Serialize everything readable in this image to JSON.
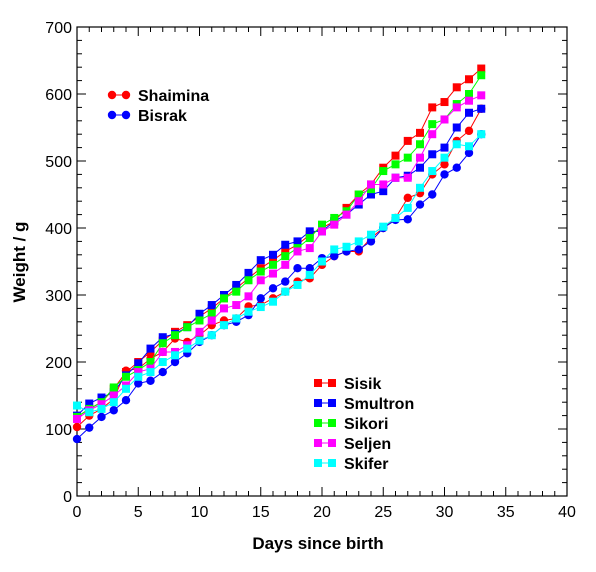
{
  "chart_data": {
    "type": "line",
    "xlabel": "Days since birth",
    "ylabel": "Weight / g",
    "xlim": [
      0,
      40
    ],
    "ylim": [
      0,
      700
    ],
    "xticks": [
      0,
      5,
      10,
      15,
      20,
      25,
      30,
      35,
      40
    ],
    "yticks": [
      0,
      100,
      200,
      300,
      400,
      500,
      600,
      700
    ],
    "grid": false,
    "series": [
      {
        "name": "Shaimina",
        "marker": "circle",
        "color": "#ff0000",
        "x": [
          0,
          1,
          2,
          3,
          4,
          5,
          6,
          7,
          8,
          9,
          10,
          11,
          12,
          13,
          14,
          15,
          16,
          17,
          18,
          19,
          20,
          21,
          22,
          23,
          24,
          25,
          26,
          27,
          28,
          29,
          30,
          31,
          32,
          33
        ],
        "y": [
          103,
          120,
          130,
          145,
          187,
          190,
          205,
          215,
          235,
          230,
          240,
          255,
          262,
          265,
          283,
          285,
          295,
          305,
          320,
          325,
          345,
          358,
          365,
          365,
          385,
          400,
          415,
          445,
          452,
          480,
          495,
          530,
          545,
          578
        ]
      },
      {
        "name": "Bisrak",
        "marker": "circle",
        "color": "#0000ff",
        "x": [
          0,
          1,
          2,
          3,
          4,
          5,
          6,
          7,
          8,
          9,
          10,
          11,
          12,
          13,
          14,
          15,
          16,
          17,
          18,
          19,
          20,
          21,
          22,
          23,
          24,
          25,
          26,
          27,
          28,
          29,
          30,
          31,
          32,
          33
        ],
        "y": [
          85,
          102,
          118,
          128,
          143,
          168,
          172,
          185,
          200,
          213,
          230,
          240,
          255,
          260,
          270,
          295,
          310,
          320,
          340,
          340,
          355,
          358,
          365,
          368,
          380,
          400,
          412,
          413,
          435,
          450,
          480,
          490,
          512,
          540
        ]
      },
      {
        "name": "Sisik",
        "marker": "square",
        "color": "#ff0000",
        "x": [
          0,
          1,
          2,
          3,
          4,
          5,
          6,
          7,
          8,
          9,
          10,
          11,
          12,
          13,
          14,
          15,
          16,
          17,
          18,
          19,
          20,
          21,
          22,
          23,
          24,
          25,
          26,
          27,
          28,
          29,
          30,
          31,
          32,
          33
        ],
        "y": [
          118,
          130,
          140,
          160,
          185,
          200,
          215,
          232,
          245,
          255,
          268,
          280,
          295,
          310,
          325,
          340,
          352,
          365,
          375,
          390,
          400,
          410,
          430,
          450,
          465,
          490,
          508,
          530,
          542,
          580,
          588,
          610,
          622,
          638
        ]
      },
      {
        "name": "Smultron",
        "marker": "square",
        "color": "#0000ff",
        "x": [
          0,
          1,
          2,
          3,
          4,
          5,
          6,
          7,
          8,
          9,
          10,
          11,
          12,
          13,
          14,
          15,
          16,
          17,
          18,
          19,
          20,
          21,
          22,
          23,
          24,
          25,
          26,
          27,
          28,
          29,
          30,
          31,
          32,
          33
        ],
        "y": [
          120,
          138,
          147,
          155,
          180,
          198,
          220,
          237,
          242,
          252,
          272,
          285,
          300,
          315,
          333,
          352,
          360,
          375,
          380,
          395,
          395,
          410,
          420,
          435,
          450,
          455,
          475,
          478,
          490,
          510,
          520,
          550,
          572,
          578
        ]
      },
      {
        "name": "Sikori",
        "marker": "square",
        "color": "#00ff00",
        "x": [
          0,
          1,
          2,
          3,
          4,
          5,
          6,
          7,
          8,
          9,
          10,
          11,
          12,
          13,
          14,
          15,
          16,
          17,
          18,
          19,
          20,
          21,
          22,
          23,
          24,
          25,
          26,
          27,
          28,
          29,
          30,
          31,
          32,
          33
        ],
        "y": [
          118,
          130,
          140,
          162,
          178,
          188,
          200,
          228,
          240,
          252,
          262,
          272,
          295,
          305,
          322,
          335,
          345,
          358,
          370,
          385,
          405,
          415,
          425,
          450,
          458,
          485,
          495,
          505,
          525,
          555,
          562,
          585,
          600,
          628
        ]
      },
      {
        "name": "Seljen",
        "marker": "square",
        "color": "#ff00ff",
        "x": [
          0,
          1,
          2,
          3,
          4,
          5,
          6,
          7,
          8,
          9,
          10,
          11,
          12,
          13,
          14,
          15,
          16,
          17,
          18,
          19,
          20,
          21,
          22,
          23,
          24,
          25,
          26,
          27,
          28,
          29,
          30,
          31,
          32,
          33
        ],
        "y": [
          115,
          128,
          137,
          150,
          165,
          185,
          190,
          215,
          215,
          225,
          245,
          262,
          280,
          285,
          298,
          322,
          332,
          345,
          365,
          370,
          395,
          405,
          420,
          440,
          465,
          465,
          475,
          475,
          505,
          540,
          562,
          580,
          590,
          598
        ]
      },
      {
        "name": "Skifer",
        "marker": "square",
        "color": "#00ffff",
        "x": [
          0,
          1,
          2,
          3,
          4,
          5,
          6,
          7,
          8,
          9,
          10,
          11,
          12,
          13,
          14,
          15,
          16,
          17,
          18,
          19,
          20,
          21,
          22,
          23,
          24,
          25,
          26,
          27,
          28,
          29,
          30,
          31,
          32,
          33
        ],
        "y": [
          135,
          125,
          130,
          140,
          160,
          178,
          185,
          200,
          210,
          220,
          232,
          240,
          255,
          265,
          275,
          282,
          290,
          305,
          315,
          330,
          350,
          368,
          372,
          380,
          390,
          402,
          415,
          430,
          460,
          485,
          505,
          525,
          522,
          540
        ]
      }
    ],
    "legends": [
      {
        "placement": "top-left",
        "items": [
          "Shaimina",
          "Bisrak"
        ]
      },
      {
        "placement": "bottom-right",
        "items": [
          "Sisik",
          "Smultron",
          "Sikori",
          "Seljen",
          "Skifer"
        ]
      }
    ]
  }
}
